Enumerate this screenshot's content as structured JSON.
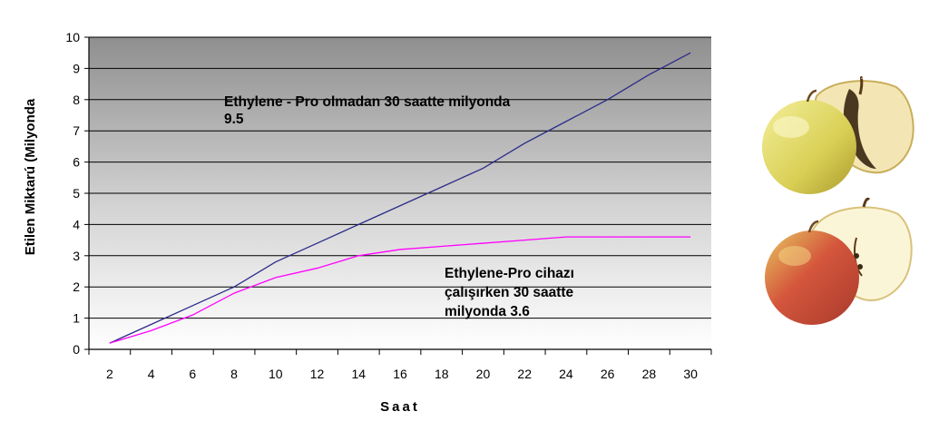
{
  "chart_data": {
    "type": "line",
    "title": "",
    "xlabel": "Saat",
    "ylabel": "Etilen Miktarú (Milyonda",
    "x": [
      2,
      4,
      6,
      8,
      10,
      12,
      14,
      16,
      18,
      20,
      22,
      24,
      26,
      28,
      30
    ],
    "xlim": [
      1,
      31
    ],
    "ylim": [
      0,
      10
    ],
    "yticks": [
      0,
      1,
      2,
      3,
      4,
      5,
      6,
      7,
      8,
      9,
      10
    ],
    "grid": true,
    "legend": "none",
    "series": [
      {
        "color": "#2b2b8a",
        "values": [
          0.2,
          0.8,
          1.4,
          2.0,
          2.8,
          3.4,
          4.0,
          4.6,
          5.2,
          5.8,
          6.6,
          7.3,
          8.0,
          8.8,
          9.5
        ]
      },
      {
        "color": "#ff00ff",
        "values": [
          0.2,
          0.6,
          1.1,
          1.8,
          2.3,
          2.6,
          3.0,
          3.2,
          3.3,
          3.4,
          3.5,
          3.6,
          3.6,
          3.6,
          3.6
        ]
      }
    ],
    "annotations": [
      {
        "lines": [
          "Ethylene - Pro olmadan 30 saatte milyonda",
          "9.5"
        ]
      },
      {
        "lines": [
          "Ethylene-Pro cihazı",
          "çalışırken 30 saatte",
          "milyonda 3.6"
        ]
      }
    ]
  },
  "images": {
    "top": "apple-yellow-halved-icon",
    "bottom": "apple-red-halved-icon"
  }
}
